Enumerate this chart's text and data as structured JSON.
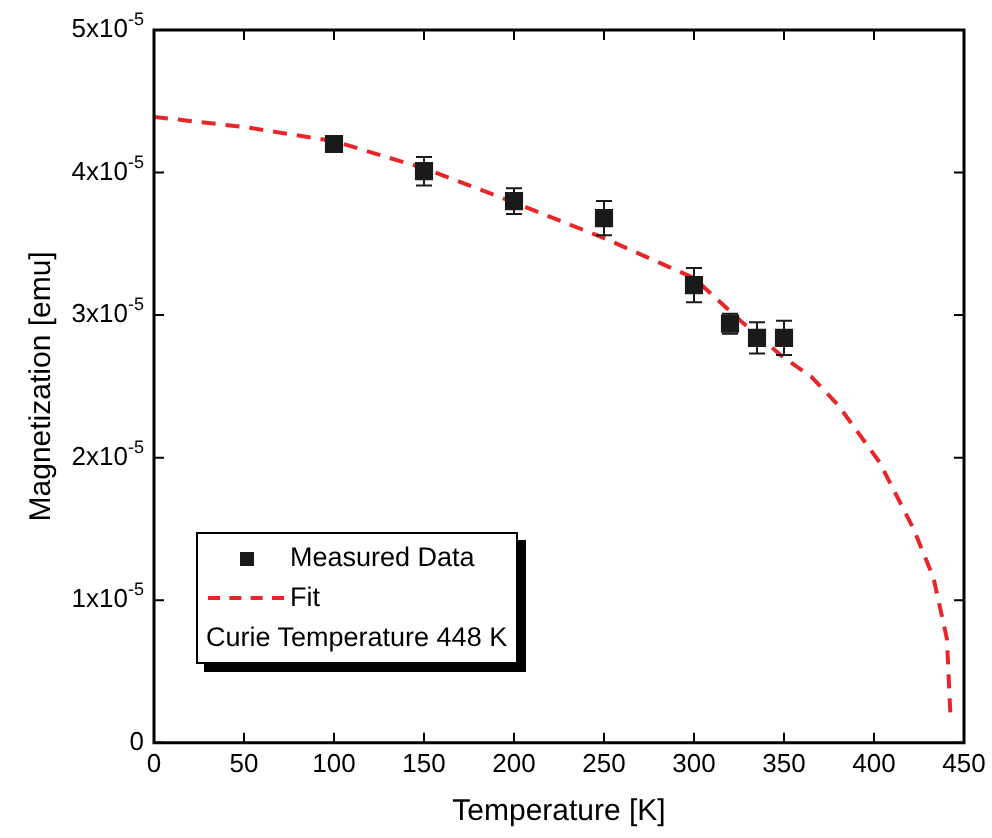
{
  "chart_data": {
    "type": "scatter",
    "xlabel": "Temperature [K]",
    "ylabel": "Magnetization [emu]",
    "xlim": [
      0,
      450
    ],
    "xticks": [
      0,
      50,
      100,
      150,
      200,
      250,
      300,
      350,
      400,
      450
    ],
    "ylim": [
      0,
      5e-05
    ],
    "yticks": [
      0,
      {
        "value": 1e-05,
        "label": "1x10$^{-5}$"
      },
      {
        "value": 2e-05,
        "label": "2x10$^{-5}$"
      },
      {
        "value": 3e-05,
        "label": "3x10$^{-5}$"
      },
      {
        "value": 4e-05,
        "label": "4x10$^{-5}$"
      },
      {
        "value": 5e-05,
        "label": "5x10$^{-5}$"
      }
    ],
    "grid": false,
    "legend": "bottom left",
    "series": [
      {
        "name": "Measured Data",
        "type": "scatter",
        "marker": "square",
        "color": "#1a1a1a",
        "x": [
          100,
          150,
          200,
          250,
          300,
          320,
          335,
          350
        ],
        "values": [
          4.2e-05,
          4.01e-05,
          3.8e-05,
          3.68e-05,
          3.21e-05,
          2.94e-05,
          2.84e-05,
          2.84e-05
        ],
        "errors": [
          3e-07,
          1e-06,
          9e-07,
          1.2e-06,
          1.2e-06,
          7e-07,
          1.1e-06,
          1.2e-06
        ]
      },
      {
        "name": "Fit",
        "type": "line",
        "marker": "none",
        "line_style": "dashed",
        "color": "#e8262a",
        "x": [
          0,
          50,
          100,
          150,
          200,
          250,
          300,
          325,
          350,
          365,
          380,
          403,
          422,
          433,
          440.5,
          442.4
        ],
        "values": [
          4.39e-05,
          4.32e-05,
          4.22e-05,
          4.03e-05,
          3.79e-05,
          3.54e-05,
          3.26e-05,
          2.97e-05,
          2.7e-05,
          2.57e-05,
          2.37e-05,
          1.97e-05,
          1.5e-05,
          1.16e-05,
          7.3e-06,
          2.1e-06
        ]
      }
    ],
    "annotations": [
      "Curie Temperature 448 K"
    ]
  }
}
